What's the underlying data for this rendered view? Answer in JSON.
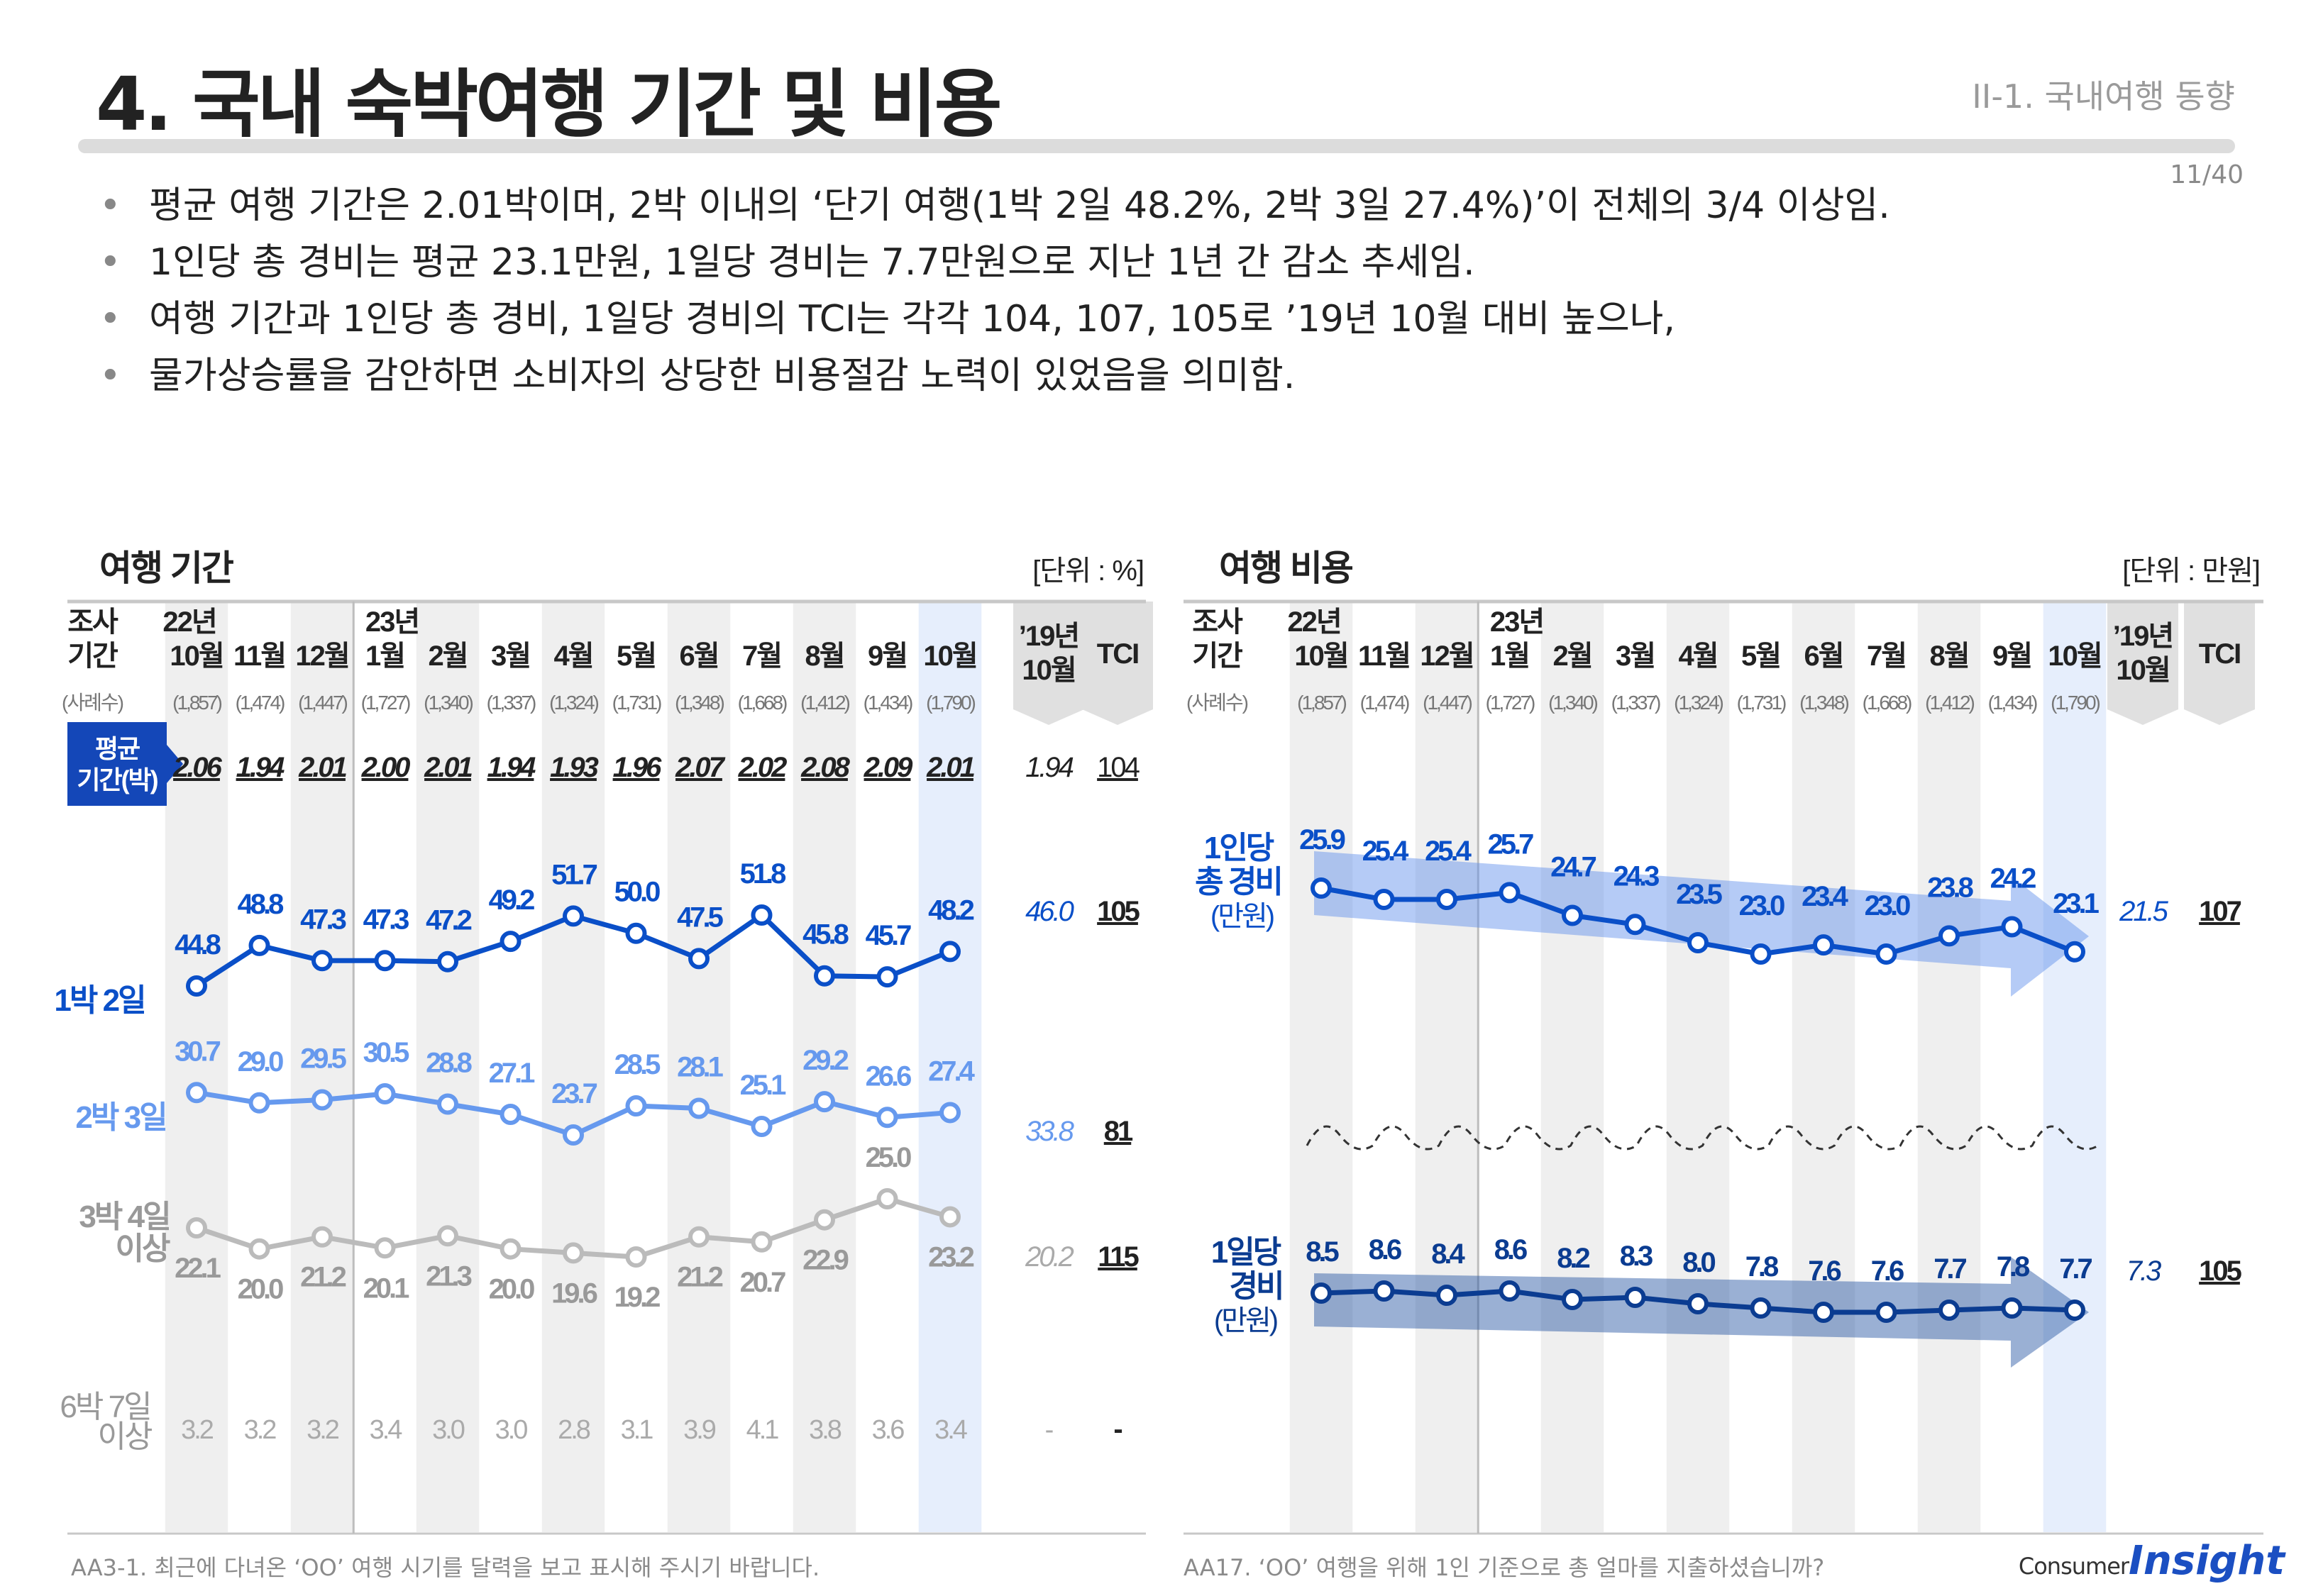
{
  "header": {
    "title": "4. 국내 숙박여행 기간 및 비용",
    "section": "II-1. 국내여행 동향",
    "page": "11/40"
  },
  "bullets": [
    "평균 여행 기간은 2.01박이며, 2박 이내의 ‘단기 여행(1박 2일 48.2%, 2박 3일 27.4%)’이 전체의 3/4 이상임.",
    "1인당 총 경비는 평균 23.1만원, 1일당 경비는 7.7만원으로 지난 1년 간 감소 추세임.",
    "여행 기간과 1인당 총 경비, 1일당 경비의 TCI는 각각 104, 107, 105로 ’19년 10월 대비 높으나,",
    "물가상승률을 감안하면 소비자의 상당한 비용절감 노력이 있었음을 의미함."
  ],
  "columns": {
    "header_label_1": "조사",
    "header_label_2": "기간",
    "year_22": "22년",
    "year_23": "23년",
    "months": [
      "10월",
      "11월",
      "12월",
      "1월",
      "2월",
      "3월",
      "4월",
      "5월",
      "6월",
      "7월",
      "8월",
      "9월",
      "10월"
    ],
    "ref_label_1": "’19년",
    "ref_label_2": "10월",
    "tci_label": "TCI",
    "sample_label": "(사례수)",
    "samples": [
      "(1,857)",
      "(1,474)",
      "(1,447)",
      "(1,727)",
      "(1,340)",
      "(1,337)",
      "(1,324)",
      "(1,731)",
      "(1,348)",
      "(1,668)",
      "(1,412)",
      "(1,434)",
      "(1,790)"
    ]
  },
  "colors": {
    "dark_blue": "#0a4fc8",
    "light_blue": "#6699ee",
    "gray": "#bbbbbb",
    "navy": "#0b3c91",
    "badge": "#1447b8",
    "highlight": "#e6eefc",
    "stripe": "#efefef"
  },
  "footnotes": {
    "left": "AA3-1. 최근에 다녀온 ‘OO’ 여행 시기를 달력을 보고 표시해 주시기 바랍니다.",
    "right": "AA17. ‘OO’ 여행을 위해 1인 기준으로 총 얼마를 지출하셨습니까?"
  },
  "brand": {
    "consumer": "Consumer",
    "insight": "Insight"
  },
  "chart_data": [
    {
      "type": "line",
      "title": "여행 기간",
      "unit": "[단위 : %]",
      "categories": [
        "22년 10월",
        "11월",
        "12월",
        "23년 1월",
        "2월",
        "3월",
        "4월",
        "5월",
        "6월",
        "7월",
        "8월",
        "9월",
        "10월"
      ],
      "avg_row": {
        "label_1": "평균",
        "label_2": "기간(박)",
        "values": [
          "2.06",
          "1.94",
          "2.01",
          "2.00",
          "2.01",
          "1.94",
          "1.93",
          "1.96",
          "2.07",
          "2.02",
          "2.08",
          "2.09",
          "2.01"
        ],
        "ref": "1.94",
        "tci": "104"
      },
      "series": [
        {
          "name": "1박 2일",
          "values": [
            "44.8",
            "48.8",
            "47.3",
            "47.3",
            "47.2",
            "49.2",
            "51.7",
            "50.0",
            "47.5",
            "51.8",
            "45.8",
            "45.7",
            "48.2"
          ],
          "ref": "46.0",
          "tci": "105"
        },
        {
          "name": "2박 3일",
          "values": [
            "30.7",
            "29.0",
            "29.5",
            "30.5",
            "28.8",
            "27.1",
            "23.7",
            "28.5",
            "28.1",
            "25.1",
            "29.2",
            "26.6",
            "27.4"
          ],
          "ref": "33.8",
          "tci": "81"
        },
        {
          "name": "3박 4일 이상",
          "name_1": "3박 4일",
          "name_2": "이상",
          "values": [
            "22.1",
            "20.0",
            "21.2",
            "20.1",
            "21.3",
            "20.0",
            "19.6",
            "19.2",
            "21.2",
            "20.7",
            "22.9",
            "25.0",
            "23.2"
          ],
          "ref": "20.2",
          "tci": "115"
        }
      ],
      "extra_row": {
        "name_1": "6박 7일",
        "name_2": "이상",
        "values": [
          "3.2",
          "3.2",
          "3.2",
          "3.4",
          "3.0",
          "3.0",
          "2.8",
          "3.1",
          "3.9",
          "4.1",
          "3.8",
          "3.6",
          "3.4"
        ],
        "ref": "-",
        "tci": "-"
      }
    },
    {
      "type": "line",
      "title": "여행 비용",
      "unit": "[단위 : 만원]",
      "categories": [
        "22년 10월",
        "11월",
        "12월",
        "23년 1월",
        "2월",
        "3월",
        "4월",
        "5월",
        "6월",
        "7월",
        "8월",
        "9월",
        "10월"
      ],
      "series": [
        {
          "name": "1인당 총 경비 (만원)",
          "name_1": "1인당",
          "name_2": "총 경비",
          "name_3": "(만원)",
          "values": [
            "25.9",
            "25.4",
            "25.4",
            "25.7",
            "24.7",
            "24.3",
            "23.5",
            "23.0",
            "23.4",
            "23.0",
            "23.8",
            "24.2",
            "23.1"
          ],
          "ref": "21.5",
          "tci": "107"
        },
        {
          "name": "1일당 경비 (만원)",
          "name_1": "1일당",
          "name_2": "경비",
          "name_3": "(만원)",
          "values": [
            "8.5",
            "8.6",
            "8.4",
            "8.6",
            "8.2",
            "8.3",
            "8.0",
            "7.8",
            "7.6",
            "7.6",
            "7.7",
            "7.8",
            "7.7"
          ],
          "ref": "7.3",
          "tci": "105"
        }
      ]
    }
  ]
}
